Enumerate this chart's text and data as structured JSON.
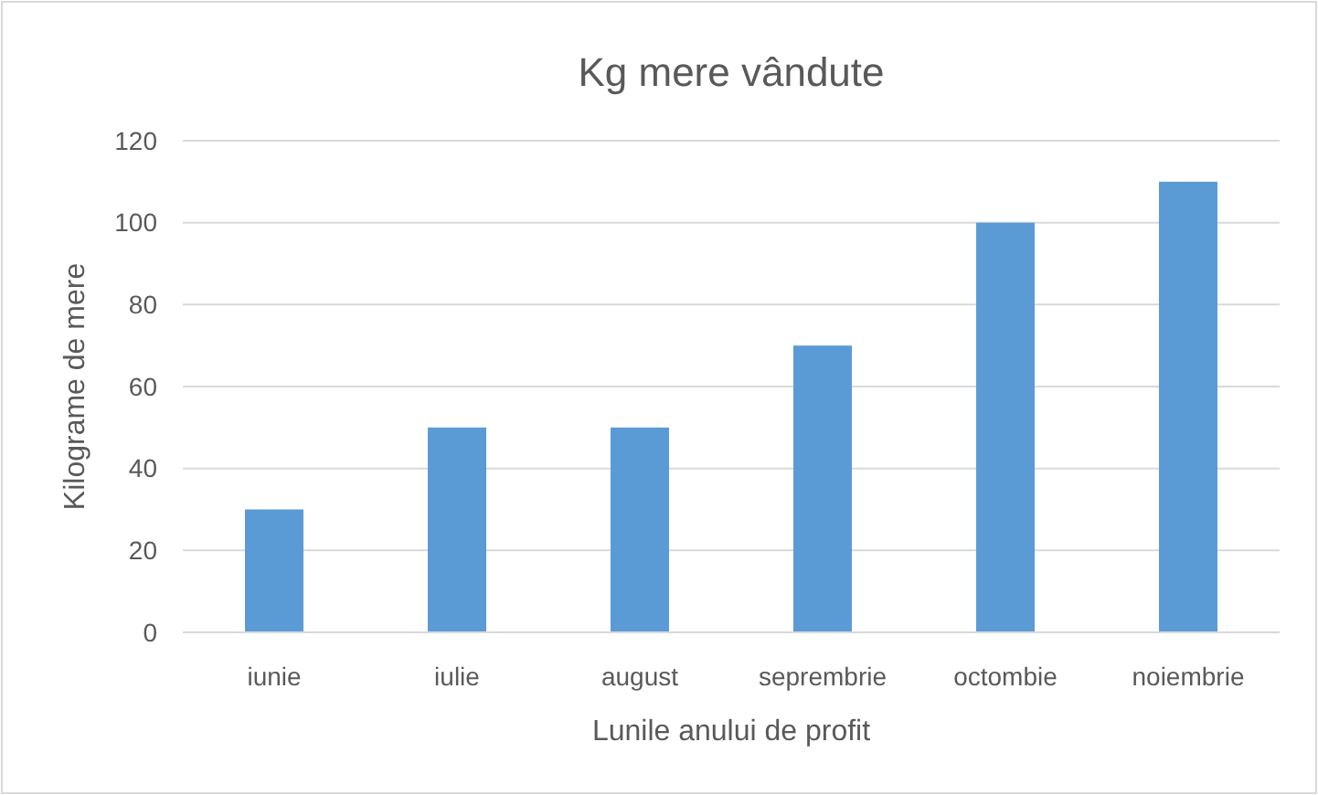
{
  "chart_data": {
    "type": "bar",
    "title": "Kg mere vândute",
    "xlabel": "Lunile anului de profit",
    "ylabel": "Kilograme de mere",
    "categories": [
      "iunie",
      "iulie",
      "august",
      "seprembrie",
      "octombie",
      "noiembrie"
    ],
    "values": [
      30,
      50,
      50,
      70,
      100,
      110
    ],
    "color": "#5b9bd5",
    "ylim": [
      0,
      120
    ],
    "yticks": [
      0,
      20,
      40,
      60,
      80,
      100,
      120
    ],
    "grid": "y"
  }
}
